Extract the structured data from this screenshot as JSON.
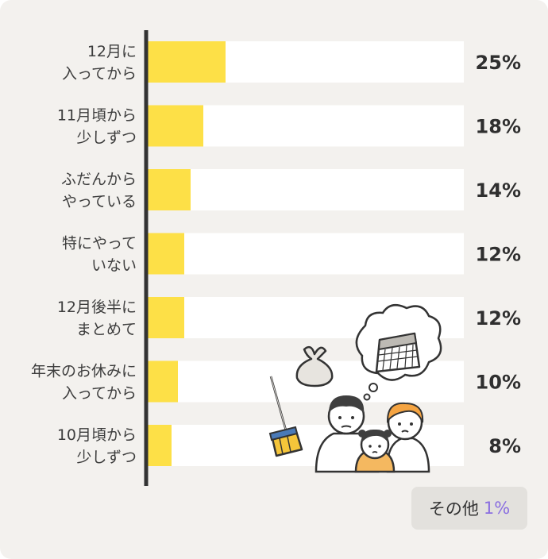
{
  "chart_data": {
    "type": "bar",
    "orientation": "horizontal",
    "categories": [
      [
        "12月に",
        "入ってから"
      ],
      [
        "11月頃から",
        "少しずつ"
      ],
      [
        "ふだんから",
        "やっている"
      ],
      [
        "特にやって",
        "いない"
      ],
      [
        "12月後半に",
        "まとめて"
      ],
      [
        "年末のお休みに",
        "入ってから"
      ],
      [
        "10月頃から",
        "少しずつ"
      ]
    ],
    "values": [
      25,
      18,
      14,
      12,
      12,
      10,
      8
    ],
    "value_labels": [
      "25%",
      "18%",
      "14%",
      "12%",
      "12%",
      "10%",
      "8%"
    ],
    "xlim": [
      0,
      100
    ],
    "bar_color": "#fde047",
    "track_color": "#ffffff",
    "axis_color": "#333333",
    "grid": false,
    "other": {
      "label": "その他",
      "value": "1%",
      "value_color": "#8a6ee0"
    }
  },
  "illustration": {
    "icons": [
      "family-thinking-icon",
      "broom-icon",
      "garbage-bag-icon",
      "calendar-thought-bubble-icon"
    ]
  }
}
